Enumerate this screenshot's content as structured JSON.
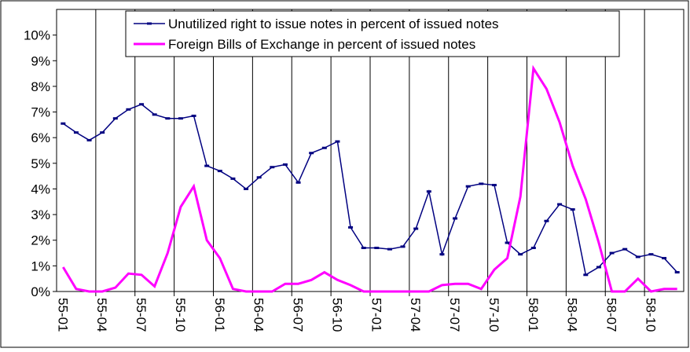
{
  "chart_data": {
    "type": "line",
    "categories": [
      "55-01",
      null,
      null,
      "55-04",
      null,
      null,
      "55-07",
      null,
      null,
      "55-10",
      null,
      null,
      "56-01",
      null,
      null,
      "56-04",
      null,
      null,
      "56-07",
      null,
      null,
      "56-10",
      null,
      null,
      "57-01",
      null,
      null,
      "57-04",
      null,
      null,
      "57-07",
      null,
      null,
      "57-10",
      null,
      null,
      "58-01",
      null,
      null,
      "58-04",
      null,
      null,
      "58-07",
      null,
      null,
      "58-10",
      null,
      null
    ],
    "series": [
      {
        "name": "Unutilized right to issue notes in percent of issued notes",
        "color": "#000080",
        "markers": true,
        "values": [
          6.55,
          6.2,
          5.9,
          6.2,
          6.75,
          7.1,
          7.3,
          6.9,
          6.75,
          6.75,
          6.85,
          4.9,
          4.7,
          4.4,
          4.0,
          4.45,
          4.85,
          4.95,
          4.25,
          5.4,
          5.6,
          5.85,
          2.5,
          1.7,
          1.7,
          1.65,
          1.75,
          2.45,
          3.9,
          1.45,
          2.85,
          4.1,
          4.2,
          4.15,
          1.9,
          1.45,
          1.7,
          2.75,
          3.4,
          3.2,
          0.65,
          0.95,
          1.5,
          1.65,
          1.35,
          1.45,
          1.3,
          0.75
        ]
      },
      {
        "name": "Foreign Bills of Exchange in percent of issued notes",
        "color": "#ff00ff",
        "markers": false,
        "values": [
          0.95,
          0.1,
          0,
          0,
          0.15,
          0.7,
          0.65,
          0.2,
          1.5,
          3.3,
          4.1,
          2.0,
          1.3,
          0.1,
          0,
          0,
          0,
          0.3,
          0.3,
          0.45,
          0.75,
          0.45,
          0.25,
          0,
          0,
          0,
          0,
          0,
          0,
          0.25,
          0.3,
          0.3,
          0.1,
          0.85,
          1.3,
          3.7,
          8.7,
          7.9,
          6.6,
          4.9,
          3.6,
          1.9,
          0,
          0,
          0.5,
          0,
          0.1,
          0.1
        ]
      }
    ],
    "ylim": [
      0,
      11
    ],
    "yticks": [
      {
        "value": 0,
        "label": "0%"
      },
      {
        "value": 1,
        "label": "1%"
      },
      {
        "value": 2,
        "label": "2%"
      },
      {
        "value": 3,
        "label": "3%"
      },
      {
        "value": 4,
        "label": "4%"
      },
      {
        "value": 5,
        "label": "5%"
      },
      {
        "value": 6,
        "label": "6%"
      },
      {
        "value": 7,
        "label": "7%"
      },
      {
        "value": 8,
        "label": "8%"
      },
      {
        "value": 9,
        "label": "9%"
      },
      {
        "value": 10,
        "label": "10%"
      }
    ],
    "x_grid": true,
    "legend": "top"
  }
}
